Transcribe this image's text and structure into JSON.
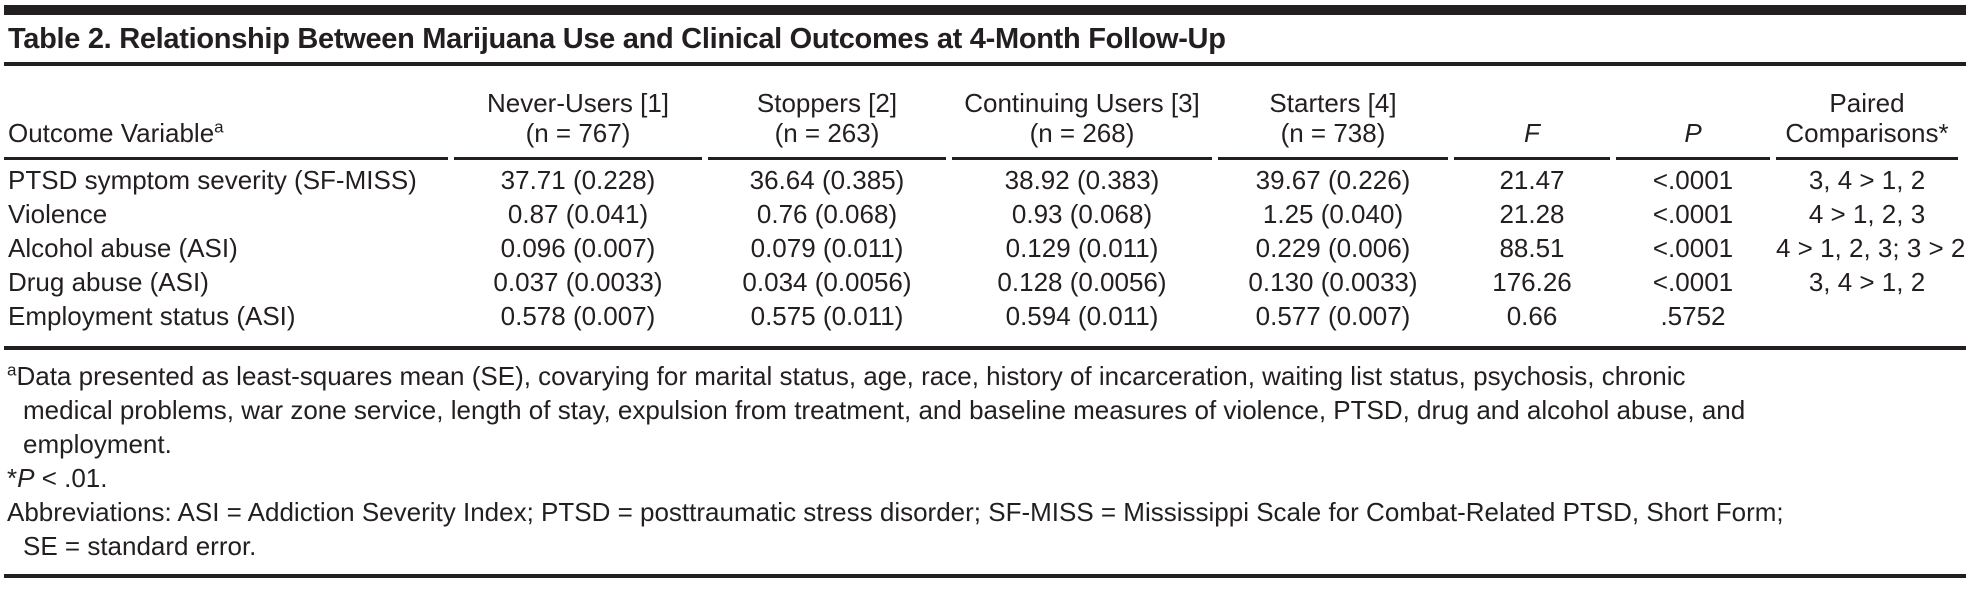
{
  "title": "Table 2. Relationship Between Marijuana Use and Clinical Outcomes at 4-Month Follow-Up",
  "colors": {
    "rule": "#231f20",
    "text": "#231f20",
    "background": "#ffffff"
  },
  "table": {
    "header": {
      "outcome_label": "Outcome Variable",
      "outcome_sup": "a",
      "groups": [
        {
          "line1": "Never-Users [1]",
          "line2": "(n = 767)"
        },
        {
          "line1": "Stoppers [2]",
          "line2": "(n = 263)"
        },
        {
          "line1": "Continuing Users [3]",
          "line2": "(n = 268)"
        },
        {
          "line1": "Starters [4]",
          "line2": "(n = 738)"
        }
      ],
      "f_label": "F",
      "p_label": "P",
      "paired_line1": "Paired",
      "paired_line2": "Comparisons*"
    },
    "rows": [
      {
        "outcome": "PTSD symptom severity (SF-MISS)",
        "never_users": "37.71 (0.228)",
        "stoppers": "36.64 (0.385)",
        "continuing": "38.92 (0.383)",
        "starters": "39.67 (0.226)",
        "f": "21.47",
        "p": "<.0001",
        "paired": "3, 4 > 1, 2"
      },
      {
        "outcome": "Violence",
        "never_users": "0.87 (0.041)",
        "stoppers": "0.76 (0.068)",
        "continuing": "0.93 (0.068)",
        "starters": "1.25 (0.040)",
        "f": "21.28",
        "p": "<.0001",
        "paired": "4 > 1, 2, 3"
      },
      {
        "outcome": "Alcohol abuse (ASI)",
        "never_users": "0.096 (0.007)",
        "stoppers": "0.079 (0.011)",
        "continuing": "0.129 (0.011)",
        "starters": "0.229 (0.006)",
        "f": "88.51",
        "p": "<.0001",
        "paired": "4 > 1, 2, 3; 3 > 2"
      },
      {
        "outcome": "Drug abuse (ASI)",
        "never_users": "0.037 (0.0033)",
        "stoppers": "0.034 (0.0056)",
        "continuing": "0.128 (0.0056)",
        "starters": "0.130 (0.0033)",
        "f": "176.26",
        "p": "<.0001",
        "paired": "3, 4 > 1, 2"
      },
      {
        "outcome": "Employment status (ASI)",
        "never_users": "0.578 (0.007)",
        "stoppers": "0.575 (0.011)",
        "continuing": "0.594 (0.011)",
        "starters": "0.577 (0.007)",
        "f": "0.66",
        "p": ".5752",
        "paired": ""
      }
    ]
  },
  "footnotes": {
    "a": {
      "marker": "a",
      "lines": [
        "Data presented as least-squares mean (SE), covarying for marital status, age, race, history of incarceration, waiting list status, psychosis, chronic",
        "medical problems, war zone service, length of stay, expulsion from treatment, and baseline measures of violence, PTSD, drug and alcohol abuse, and",
        "employment."
      ]
    },
    "p": {
      "star": "*",
      "italic": "P",
      "rest": " < .01."
    },
    "abbreviations": {
      "lines": [
        "Abbreviations: ASI = Addiction Severity Index; PTSD = posttraumatic stress disorder; SF-MISS = Mississippi Scale for Combat-Related PTSD, Short Form;",
        "SE = standard error."
      ]
    }
  }
}
